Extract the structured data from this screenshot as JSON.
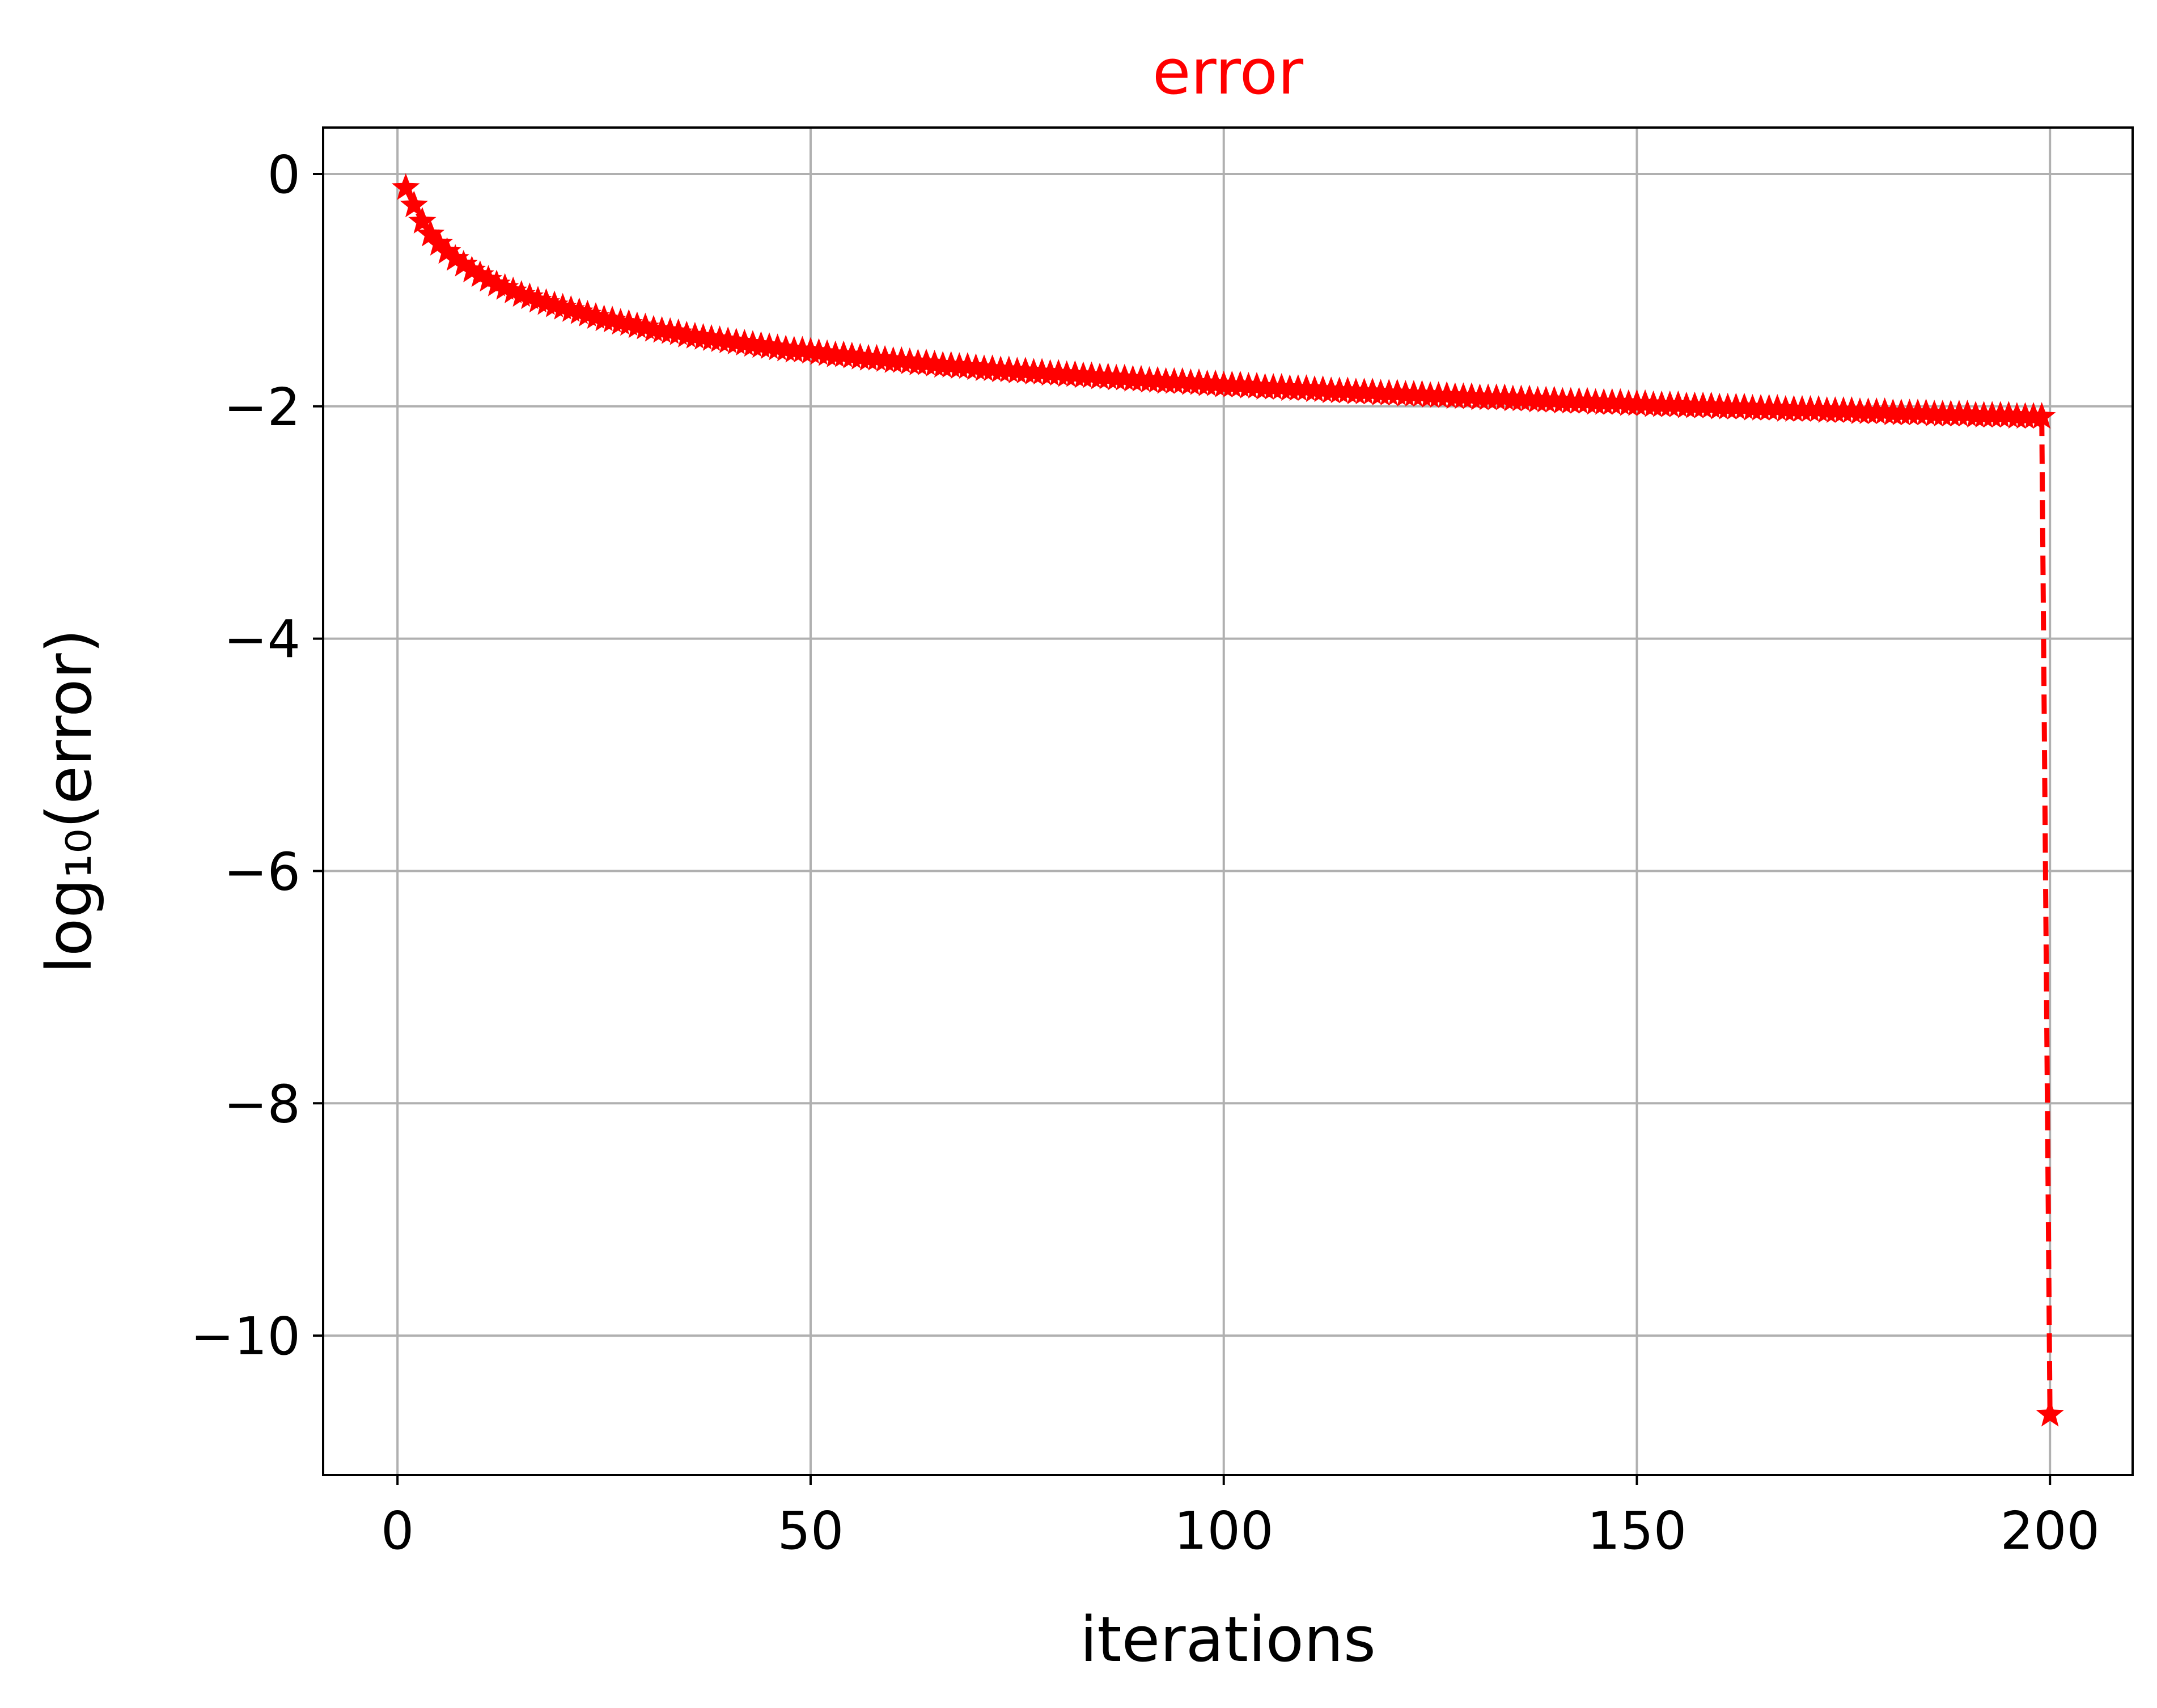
{
  "chart_data": {
    "type": "line",
    "title": "error",
    "title_color": "#ff0000",
    "xlabel": "iterations",
    "ylabel": "log₁₀(error)",
    "xlim": [
      -9,
      210
    ],
    "ylim": [
      -11.2,
      0.4
    ],
    "xticks": [
      0,
      50,
      100,
      150,
      200
    ],
    "xtick_labels": [
      "0",
      "50",
      "100",
      "150",
      "200"
    ],
    "yticks": [
      0,
      -2,
      -4,
      -6,
      -8,
      -10
    ],
    "ytick_labels": [
      "0",
      "−2",
      "−4",
      "−6",
      "−8",
      "−10"
    ],
    "grid": true,
    "series": [
      {
        "color": "#ff0000",
        "line_style": "dashed",
        "marker": "star",
        "x_start": 1,
        "x_end": 200,
        "x": [
          1,
          2,
          3,
          4,
          5,
          6,
          7,
          8,
          9,
          10,
          11,
          12,
          13,
          14,
          15,
          16,
          17,
          18,
          19,
          20,
          21,
          22,
          23,
          24,
          25,
          26,
          27,
          28,
          29,
          30,
          31,
          32,
          33,
          34,
          35,
          36,
          37,
          38,
          39,
          40,
          41,
          42,
          43,
          44,
          45,
          46,
          47,
          48,
          49,
          50,
          51,
          52,
          53,
          54,
          55,
          56,
          57,
          58,
          59,
          60,
          61,
          62,
          63,
          64,
          65,
          66,
          67,
          68,
          69,
          70,
          71,
          72,
          73,
          74,
          75,
          76,
          77,
          78,
          79,
          80,
          81,
          82,
          83,
          84,
          85,
          86,
          87,
          88,
          89,
          90,
          91,
          92,
          93,
          94,
          95,
          96,
          97,
          98,
          99,
          100,
          101,
          102,
          103,
          104,
          105,
          106,
          107,
          108,
          109,
          110,
          111,
          112,
          113,
          114,
          115,
          116,
          117,
          118,
          119,
          120,
          121,
          122,
          123,
          124,
          125,
          126,
          127,
          128,
          129,
          130,
          131,
          132,
          133,
          134,
          135,
          136,
          137,
          138,
          139,
          140,
          141,
          142,
          143,
          144,
          145,
          146,
          147,
          148,
          149,
          150,
          151,
          152,
          153,
          154,
          155,
          156,
          157,
          158,
          159,
          160,
          161,
          162,
          163,
          164,
          165,
          166,
          167,
          168,
          169,
          170,
          171,
          172,
          173,
          174,
          175,
          176,
          177,
          178,
          179,
          180,
          181,
          182,
          183,
          184,
          185,
          186,
          187,
          188,
          189,
          190,
          191,
          192,
          193,
          194,
          195,
          196,
          197,
          198,
          199,
          200
        ],
        "y": [
          -0.12,
          -0.27,
          -0.41,
          -0.52,
          -0.6,
          -0.67,
          -0.73,
          -0.78,
          -0.83,
          -0.87,
          -0.91,
          -0.95,
          -0.98,
          -1.01,
          -1.04,
          -1.06,
          -1.09,
          -1.11,
          -1.13,
          -1.15,
          -1.17,
          -1.19,
          -1.21,
          -1.23,
          -1.25,
          -1.26,
          -1.28,
          -1.29,
          -1.31,
          -1.32,
          -1.34,
          -1.35,
          -1.36,
          -1.37,
          -1.39,
          -1.4,
          -1.41,
          -1.42,
          -1.43,
          -1.44,
          -1.45,
          -1.46,
          -1.47,
          -1.48,
          -1.49,
          -1.5,
          -1.51,
          -1.52,
          -1.52,
          -1.53,
          -1.54,
          -1.55,
          -1.56,
          -1.56,
          -1.57,
          -1.58,
          -1.59,
          -1.59,
          -1.6,
          -1.61,
          -1.61,
          -1.62,
          -1.63,
          -1.63,
          -1.64,
          -1.65,
          -1.65,
          -1.66,
          -1.66,
          -1.67,
          -1.68,
          -1.68,
          -1.69,
          -1.69,
          -1.7,
          -1.7,
          -1.71,
          -1.71,
          -1.72,
          -1.72,
          -1.73,
          -1.73,
          -1.74,
          -1.74,
          -1.75,
          -1.75,
          -1.76,
          -1.76,
          -1.77,
          -1.77,
          -1.78,
          -1.78,
          -1.79,
          -1.79,
          -1.79,
          -1.8,
          -1.8,
          -1.81,
          -1.81,
          -1.82,
          -1.82,
          -1.82,
          -1.83,
          -1.83,
          -1.84,
          -1.84,
          -1.84,
          -1.85,
          -1.85,
          -1.85,
          -1.86,
          -1.86,
          -1.87,
          -1.87,
          -1.87,
          -1.88,
          -1.88,
          -1.88,
          -1.89,
          -1.89,
          -1.89,
          -1.9,
          -1.9,
          -1.9,
          -1.91,
          -1.91,
          -1.91,
          -1.92,
          -1.92,
          -1.92,
          -1.93,
          -1.93,
          -1.93,
          -1.93,
          -1.94,
          -1.94,
          -1.94,
          -1.95,
          -1.95,
          -1.95,
          -1.96,
          -1.96,
          -1.96,
          -1.96,
          -1.97,
          -1.97,
          -1.97,
          -1.97,
          -1.98,
          -1.98,
          -1.98,
          -1.99,
          -1.99,
          -1.99,
          -1.99,
          -2,
          -2,
          -2,
          -2,
          -2.01,
          -2.01,
          -2.01,
          -2.01,
          -2.02,
          -2.02,
          -2.02,
          -2.02,
          -2.03,
          -2.03,
          -2.03,
          -2.03,
          -2.03,
          -2.04,
          -2.04,
          -2.04,
          -2.04,
          -2.05,
          -2.05,
          -2.05,
          -2.05,
          -2.06,
          -2.06,
          -2.06,
          -2.06,
          -2.06,
          -2.07,
          -2.07,
          -2.07,
          -2.07,
          -2.07,
          -2.08,
          -2.08,
          -2.08,
          -2.08,
          -2.08,
          -2.09,
          -2.09,
          -2.09,
          -2.09,
          -10.68
        ]
      }
    ]
  }
}
